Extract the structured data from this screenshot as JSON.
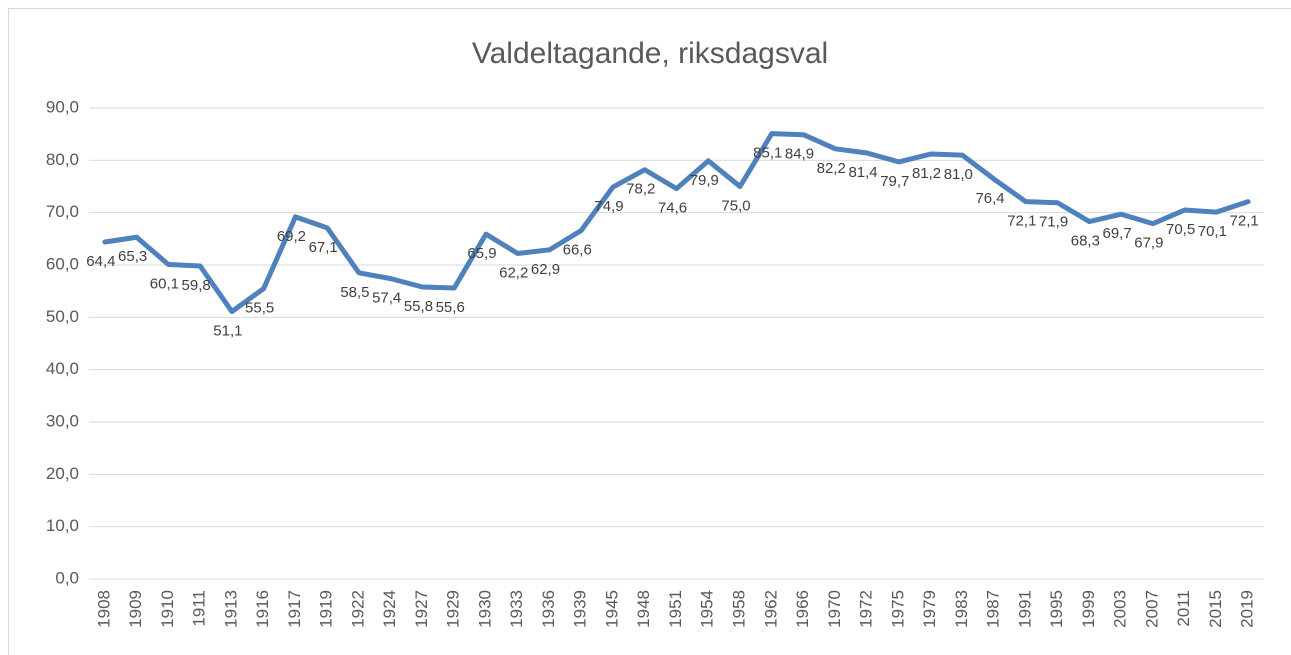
{
  "chart_data": {
    "type": "line",
    "title": "Valdeltagande, riksdagsval",
    "categories": [
      "1908",
      "1909",
      "1910",
      "1911",
      "1913",
      "1916",
      "1917",
      "1919",
      "1922",
      "1924",
      "1927",
      "1929",
      "1930",
      "1933",
      "1936",
      "1939",
      "1945",
      "1948",
      "1951",
      "1954",
      "1958",
      "1962",
      "1966",
      "1970",
      "1972",
      "1975",
      "1979",
      "1983",
      "1987",
      "1991",
      "1995",
      "1999",
      "2003",
      "2007",
      "2011",
      "2015",
      "2019"
    ],
    "values": [
      64.4,
      65.3,
      60.1,
      59.8,
      51.1,
      55.5,
      69.2,
      67.1,
      58.5,
      57.4,
      55.8,
      55.6,
      65.9,
      62.2,
      62.9,
      66.6,
      74.9,
      78.2,
      74.6,
      79.9,
      75.0,
      85.1,
      84.9,
      82.2,
      81.4,
      79.7,
      81.2,
      81.0,
      76.4,
      72.1,
      71.9,
      68.3,
      69.7,
      67.9,
      70.5,
      70.1,
      72.1
    ],
    "value_labels": [
      "64,4",
      "65,3",
      "60,1",
      "59,8",
      "51,1",
      "55,5",
      "69,2",
      "67,1",
      "58,5",
      "57,4",
      "55,8",
      "55,6",
      "65,9",
      "62,2",
      "62,9",
      "66,6",
      "74,9",
      "78,2",
      "74,6",
      "79,9",
      "75,0",
      "85,1",
      "84,9",
      "82,2",
      "81,4",
      "79,7",
      "81,2",
      "81,0",
      "76,4",
      "72,1",
      "71,9",
      "68,3",
      "69,7",
      "67,9",
      "70,5",
      "70,1",
      "72,1"
    ],
    "color": "#4f81bd",
    "ylim": [
      0,
      90
    ],
    "yticks": [
      {
        "value": 0,
        "label": "0,0"
      },
      {
        "value": 10,
        "label": "10,0"
      },
      {
        "value": 20,
        "label": "20,0"
      },
      {
        "value": 30,
        "label": "30,0"
      },
      {
        "value": 40,
        "label": "40,0"
      },
      {
        "value": 50,
        "label": "50,0"
      },
      {
        "value": 60,
        "label": "60,0"
      },
      {
        "value": 70,
        "label": "70,0"
      },
      {
        "value": 80,
        "label": "80,0"
      },
      {
        "value": 90,
        "label": "90,0"
      }
    ],
    "grid": true
  }
}
